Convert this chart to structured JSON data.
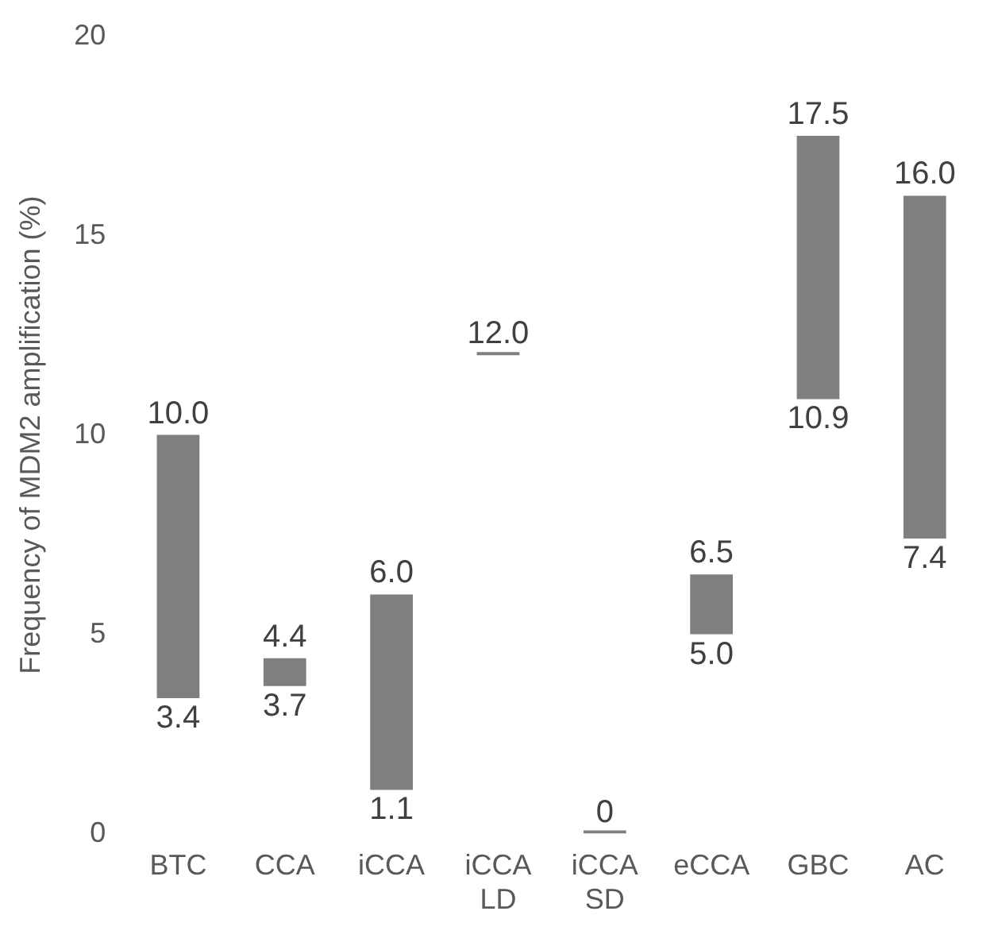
{
  "chart_data": {
    "type": "bar",
    "ylabel": "Frequency of MDM2 amplification (%)",
    "categories": [
      "BTC",
      "CCA",
      "iCCA",
      "iCCA LD",
      "iCCA SD",
      "eCCA",
      "GBC",
      "AC"
    ],
    "base": [
      3.4,
      3.7,
      1.1,
      12.0,
      0,
      5.0,
      10.9,
      7.4
    ],
    "values": [
      6.6,
      0.7,
      4.9,
      0,
      0,
      1.5,
      6.6,
      8.6
    ],
    "color": "#7f7f7f",
    "ylim": [
      0,
      20
    ],
    "yticks": [
      0,
      5,
      10,
      15,
      20
    ],
    "grid": false,
    "legend": false,
    "annotations": [
      {
        "text": "10.0",
        "x": "BTC",
        "y": 10.0
      },
      {
        "text": "3.4",
        "x": "BTC",
        "y": 3.4
      },
      {
        "text": "4.4",
        "x": "CCA",
        "y": 4.4
      },
      {
        "text": "3.7",
        "x": "CCA",
        "y": 3.7
      },
      {
        "text": "6.0",
        "x": "iCCA",
        "y": 6.0
      },
      {
        "text": "1.1",
        "x": "iCCA",
        "y": 1.1
      },
      {
        "text": "12.0",
        "x": "iCCA LD",
        "y": 12.0
      },
      {
        "text": "0",
        "x": "iCCA SD",
        "y": 0
      },
      {
        "text": "6.5",
        "x": "eCCA",
        "y": 6.5
      },
      {
        "text": "5.0",
        "x": "eCCA",
        "y": 5.0
      },
      {
        "text": "17.5",
        "x": "GBC",
        "y": 17.5
      },
      {
        "text": "10.9",
        "x": "GBC",
        "y": 10.9
      },
      {
        "text": "16.0",
        "x": "AC",
        "y": 16.0
      },
      {
        "text": "7.4",
        "x": "AC",
        "y": 7.4
      }
    ]
  }
}
